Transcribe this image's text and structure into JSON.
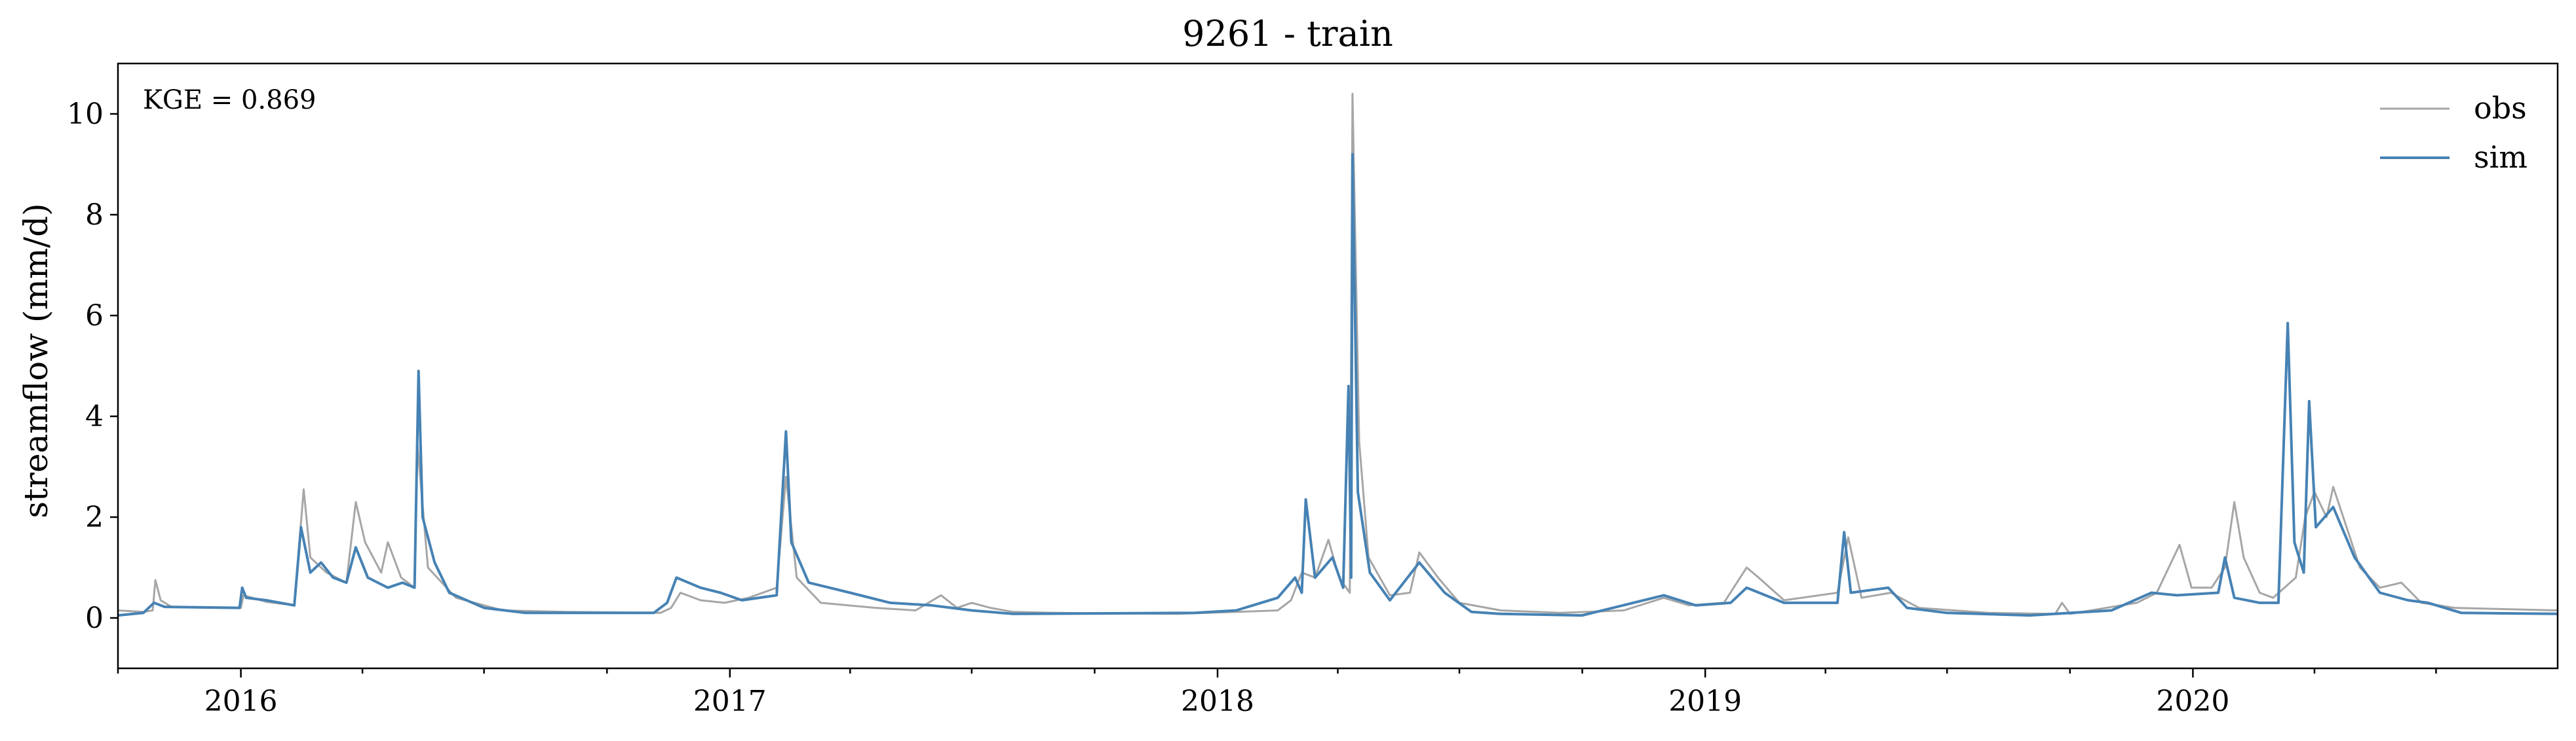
{
  "chart_data": {
    "type": "line",
    "title": "9261 - train",
    "xlabel": "",
    "ylabel": "streamflow (mm/d)",
    "annotation": "KGE = 0.869",
    "x_tick_labels": [
      "2016",
      "2017",
      "2018",
      "2019",
      "2020"
    ],
    "y_ticks": [
      0,
      2,
      4,
      6,
      8,
      10
    ],
    "y_tick_labels": [
      "0",
      "2",
      "4",
      "6",
      "8",
      "10"
    ],
    "xlim": [
      "2015-10-01",
      "2020-09-30"
    ],
    "ylim": [
      -1,
      11
    ],
    "grid": false,
    "legend_position": "top-right",
    "series": [
      {
        "name": "obs",
        "color": "#a6a6a6",
        "points": [
          [
            "2015-10-01",
            0.15
          ],
          [
            "2015-10-20",
            0.12
          ],
          [
            "2015-10-27",
            0.15
          ],
          [
            "2015-10-29",
            0.75
          ],
          [
            "2015-11-02",
            0.35
          ],
          [
            "2015-11-10",
            0.22
          ],
          [
            "2015-12-15",
            0.2
          ],
          [
            "2016-01-01",
            0.2
          ],
          [
            "2016-01-03",
            0.45
          ],
          [
            "2016-01-20",
            0.32
          ],
          [
            "2016-02-10",
            0.25
          ],
          [
            "2016-02-17",
            2.55
          ],
          [
            "2016-02-22",
            1.2
          ],
          [
            "2016-03-05",
            0.9
          ],
          [
            "2016-03-20",
            0.7
          ],
          [
            "2016-03-27",
            2.3
          ],
          [
            "2016-04-03",
            1.5
          ],
          [
            "2016-04-15",
            0.9
          ],
          [
            "2016-04-20",
            1.5
          ],
          [
            "2016-04-30",
            0.8
          ],
          [
            "2016-05-10",
            0.6
          ],
          [
            "2016-05-12",
            3.5
          ],
          [
            "2016-05-20",
            1.0
          ],
          [
            "2016-06-10",
            0.4
          ],
          [
            "2016-07-15",
            0.15
          ],
          [
            "2016-09-01",
            0.12
          ],
          [
            "2016-11-10",
            0.1
          ],
          [
            "2016-11-18",
            0.2
          ],
          [
            "2016-11-25",
            0.5
          ],
          [
            "2016-12-10",
            0.35
          ],
          [
            "2016-12-28",
            0.3
          ],
          [
            "2017-01-15",
            0.4
          ],
          [
            "2017-02-05",
            0.6
          ],
          [
            "2017-02-12",
            2.8
          ],
          [
            "2017-02-20",
            0.8
          ],
          [
            "2017-03-10",
            0.3
          ],
          [
            "2017-04-20",
            0.2
          ],
          [
            "2017-05-20",
            0.15
          ],
          [
            "2017-06-08",
            0.45
          ],
          [
            "2017-06-20",
            0.2
          ],
          [
            "2017-07-01",
            0.3
          ],
          [
            "2017-07-15",
            0.2
          ],
          [
            "2017-08-01",
            0.12
          ],
          [
            "2017-09-01",
            0.1
          ],
          [
            "2017-12-01",
            0.08
          ],
          [
            "2018-01-15",
            0.12
          ],
          [
            "2018-02-15",
            0.15
          ],
          [
            "2018-02-25",
            0.35
          ],
          [
            "2018-03-05",
            0.9
          ],
          [
            "2018-03-15",
            0.8
          ],
          [
            "2018-03-25",
            1.55
          ],
          [
            "2018-04-02",
            0.8
          ],
          [
            "2018-04-10",
            0.5
          ],
          [
            "2018-04-12",
            10.4
          ],
          [
            "2018-04-17",
            3.5
          ],
          [
            "2018-04-24",
            1.2
          ],
          [
            "2018-05-10",
            0.45
          ],
          [
            "2018-05-25",
            0.5
          ],
          [
            "2018-06-01",
            1.3
          ],
          [
            "2018-06-15",
            0.8
          ],
          [
            "2018-07-01",
            0.3
          ],
          [
            "2018-08-01",
            0.15
          ],
          [
            "2018-09-15",
            0.1
          ],
          [
            "2018-11-01",
            0.15
          ],
          [
            "2018-12-01",
            0.4
          ],
          [
            "2018-12-20",
            0.25
          ],
          [
            "2019-01-15",
            0.3
          ],
          [
            "2019-02-01",
            1.0
          ],
          [
            "2019-02-10",
            0.8
          ],
          [
            "2019-03-01",
            0.35
          ],
          [
            "2019-04-10",
            0.5
          ],
          [
            "2019-04-18",
            1.6
          ],
          [
            "2019-04-28",
            0.4
          ],
          [
            "2019-05-20",
            0.5
          ],
          [
            "2019-06-10",
            0.2
          ],
          [
            "2019-08-01",
            0.1
          ],
          [
            "2019-09-20",
            0.08
          ],
          [
            "2019-09-25",
            0.3
          ],
          [
            "2019-10-01",
            0.08
          ],
          [
            "2019-11-20",
            0.3
          ],
          [
            "2019-12-05",
            0.5
          ],
          [
            "2019-12-22",
            1.45
          ],
          [
            "2019-12-31",
            0.6
          ],
          [
            "2020-01-15",
            0.6
          ],
          [
            "2020-01-25",
            1.0
          ],
          [
            "2020-02-01",
            2.3
          ],
          [
            "2020-02-08",
            1.2
          ],
          [
            "2020-02-20",
            0.5
          ],
          [
            "2020-03-01",
            0.4
          ],
          [
            "2020-03-18",
            0.8
          ],
          [
            "2020-03-25",
            2.0
          ],
          [
            "2020-04-01",
            2.5
          ],
          [
            "2020-04-10",
            2.0
          ],
          [
            "2020-04-15",
            2.6
          ],
          [
            "2020-04-25",
            1.8
          ],
          [
            "2020-05-05",
            1.0
          ],
          [
            "2020-05-20",
            0.6
          ],
          [
            "2020-06-05",
            0.7
          ],
          [
            "2020-06-20",
            0.3
          ],
          [
            "2020-07-15",
            0.2
          ],
          [
            "2020-09-30",
            0.15
          ]
        ]
      },
      {
        "name": "sim",
        "color": "#4682b4",
        "points": [
          [
            "2015-10-01",
            0.05
          ],
          [
            "2015-10-20",
            0.1
          ],
          [
            "2015-10-28",
            0.3
          ],
          [
            "2015-11-05",
            0.22
          ],
          [
            "2015-12-31",
            0.2
          ],
          [
            "2016-01-02",
            0.6
          ],
          [
            "2016-01-05",
            0.4
          ],
          [
            "2016-01-20",
            0.35
          ],
          [
            "2016-02-10",
            0.25
          ],
          [
            "2016-02-15",
            1.8
          ],
          [
            "2016-02-22",
            0.9
          ],
          [
            "2016-03-01",
            1.1
          ],
          [
            "2016-03-10",
            0.8
          ],
          [
            "2016-03-20",
            0.7
          ],
          [
            "2016-03-27",
            1.4
          ],
          [
            "2016-04-05",
            0.8
          ],
          [
            "2016-04-20",
            0.6
          ],
          [
            "2016-05-01",
            0.7
          ],
          [
            "2016-05-10",
            0.6
          ],
          [
            "2016-05-13",
            4.9
          ],
          [
            "2016-05-16",
            2.0
          ],
          [
            "2016-05-25",
            1.1
          ],
          [
            "2016-06-05",
            0.5
          ],
          [
            "2016-07-01",
            0.2
          ],
          [
            "2016-08-01",
            0.1
          ],
          [
            "2016-11-05",
            0.1
          ],
          [
            "2016-11-15",
            0.3
          ],
          [
            "2016-11-22",
            0.8
          ],
          [
            "2016-12-10",
            0.6
          ],
          [
            "2016-12-25",
            0.5
          ],
          [
            "2017-01-10",
            0.35
          ],
          [
            "2017-02-05",
            0.45
          ],
          [
            "2017-02-12",
            3.7
          ],
          [
            "2017-02-16",
            1.5
          ],
          [
            "2017-03-01",
            0.7
          ],
          [
            "2017-04-01",
            0.5
          ],
          [
            "2017-05-01",
            0.3
          ],
          [
            "2017-06-01",
            0.25
          ],
          [
            "2017-07-01",
            0.15
          ],
          [
            "2017-08-01",
            0.08
          ],
          [
            "2017-12-15",
            0.1
          ],
          [
            "2018-01-15",
            0.15
          ],
          [
            "2018-02-15",
            0.4
          ],
          [
            "2018-02-28",
            0.8
          ],
          [
            "2018-03-05",
            0.5
          ],
          [
            "2018-03-08",
            2.35
          ],
          [
            "2018-03-15",
            0.8
          ],
          [
            "2018-03-28",
            1.2
          ],
          [
            "2018-04-05",
            0.6
          ],
          [
            "2018-04-09",
            4.6
          ],
          [
            "2018-04-11",
            0.8
          ],
          [
            "2018-04-12",
            9.2
          ],
          [
            "2018-04-16",
            2.5
          ],
          [
            "2018-04-25",
            0.9
          ],
          [
            "2018-05-10",
            0.35
          ],
          [
            "2018-06-01",
            1.1
          ],
          [
            "2018-06-20",
            0.5
          ],
          [
            "2018-07-10",
            0.12
          ],
          [
            "2018-08-01",
            0.08
          ],
          [
            "2018-10-01",
            0.05
          ],
          [
            "2018-12-01",
            0.45
          ],
          [
            "2018-12-25",
            0.25
          ],
          [
            "2019-01-20",
            0.3
          ],
          [
            "2019-02-01",
            0.6
          ],
          [
            "2019-03-01",
            0.3
          ],
          [
            "2019-04-10",
            0.3
          ],
          [
            "2019-04-15",
            1.7
          ],
          [
            "2019-04-20",
            0.5
          ],
          [
            "2019-05-18",
            0.6
          ],
          [
            "2019-06-01",
            0.2
          ],
          [
            "2019-07-01",
            0.1
          ],
          [
            "2019-09-01",
            0.05
          ],
          [
            "2019-11-01",
            0.15
          ],
          [
            "2019-12-01",
            0.5
          ],
          [
            "2019-12-20",
            0.45
          ],
          [
            "2020-01-20",
            0.5
          ],
          [
            "2020-01-25",
            1.2
          ],
          [
            "2020-02-01",
            0.4
          ],
          [
            "2020-02-20",
            0.3
          ],
          [
            "2020-03-05",
            0.3
          ],
          [
            "2020-03-12",
            5.85
          ],
          [
            "2020-03-17",
            1.5
          ],
          [
            "2020-03-24",
            0.9
          ],
          [
            "2020-03-28",
            4.3
          ],
          [
            "2020-04-02",
            1.8
          ],
          [
            "2020-04-15",
            2.2
          ],
          [
            "2020-05-01",
            1.2
          ],
          [
            "2020-05-20",
            0.5
          ],
          [
            "2020-06-10",
            0.35
          ],
          [
            "2020-06-25",
            0.3
          ],
          [
            "2020-07-20",
            0.1
          ],
          [
            "2020-09-30",
            0.08
          ]
        ]
      }
    ]
  }
}
